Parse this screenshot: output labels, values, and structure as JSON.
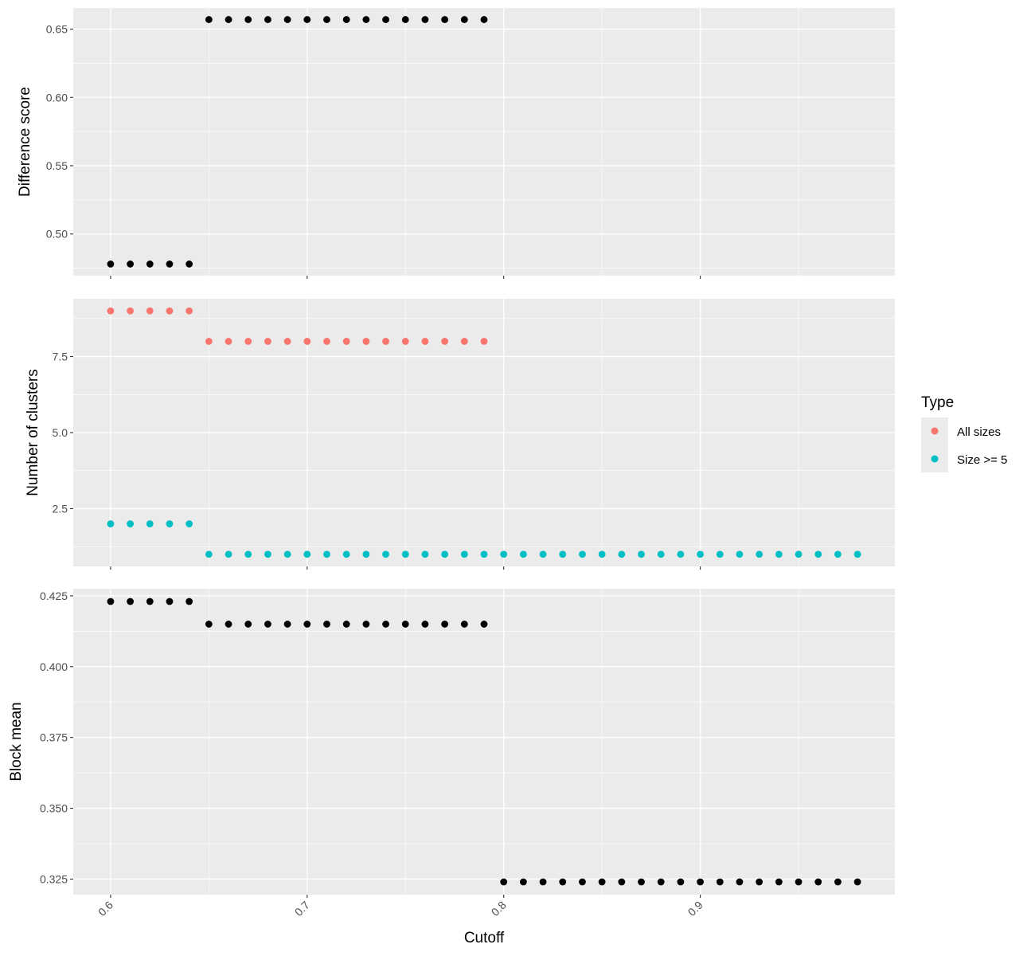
{
  "chart_data": {
    "type": "scatter",
    "x_label": "Cutoff",
    "x_ticks": [
      "0.6",
      "0.7",
      "0.8",
      "0.9"
    ],
    "x_range": [
      0.581,
      0.999
    ],
    "grid": true,
    "legend": {
      "title": "Type",
      "position": "right",
      "entries": [
        {
          "label": "All sizes",
          "color": "#F8766D"
        },
        {
          "label": "Size >= 5",
          "color": "#00BFC4"
        }
      ]
    },
    "panels": [
      {
        "y_label": "Difference score",
        "y_range": [
          0.4695,
          0.6655
        ],
        "y_ticks": [
          "0.50",
          "0.55",
          "0.60",
          "0.65"
        ],
        "series": [
          {
            "color": "#000000",
            "x": [
              0.6,
              0.61,
              0.62,
              0.63,
              0.64,
              0.65,
              0.66,
              0.67,
              0.68,
              0.69,
              0.7,
              0.71,
              0.72,
              0.73,
              0.74,
              0.75,
              0.76,
              0.77,
              0.78,
              0.79
            ],
            "y": [
              0.478,
              0.478,
              0.478,
              0.478,
              0.478,
              0.657,
              0.657,
              0.657,
              0.657,
              0.657,
              0.657,
              0.657,
              0.657,
              0.657,
              0.657,
              0.657,
              0.657,
              0.657,
              0.657,
              0.657
            ]
          }
        ]
      },
      {
        "y_label": "Number of clusters",
        "y_range": [
          0.6,
          9.4
        ],
        "y_ticks": [
          "2.5",
          "5.0",
          "7.5"
        ],
        "series": [
          {
            "name": "All sizes",
            "color": "#F8766D",
            "x": [
              0.6,
              0.61,
              0.62,
              0.63,
              0.64,
              0.65,
              0.66,
              0.67,
              0.68,
              0.69,
              0.7,
              0.71,
              0.72,
              0.73,
              0.74,
              0.75,
              0.76,
              0.77,
              0.78,
              0.79
            ],
            "y": [
              9,
              9,
              9,
              9,
              9,
              8,
              8,
              8,
              8,
              8,
              8,
              8,
              8,
              8,
              8,
              8,
              8,
              8,
              8,
              8
            ]
          },
          {
            "name": "Size >= 5",
            "color": "#00BFC4",
            "x": [
              0.6,
              0.61,
              0.62,
              0.63,
              0.64,
              0.65,
              0.66,
              0.67,
              0.68,
              0.69,
              0.7,
              0.71,
              0.72,
              0.73,
              0.74,
              0.75,
              0.76,
              0.77,
              0.78,
              0.79,
              0.8,
              0.81,
              0.82,
              0.83,
              0.84,
              0.85,
              0.86,
              0.87,
              0.88,
              0.89,
              0.9,
              0.91,
              0.92,
              0.93,
              0.94,
              0.95,
              0.96,
              0.97,
              0.98
            ],
            "y": [
              2,
              2,
              2,
              2,
              2,
              1,
              1,
              1,
              1,
              1,
              1,
              1,
              1,
              1,
              1,
              1,
              1,
              1,
              1,
              1,
              1,
              1,
              1,
              1,
              1,
              1,
              1,
              1,
              1,
              1,
              1,
              1,
              1,
              1,
              1,
              1,
              1,
              1,
              1
            ]
          }
        ]
      },
      {
        "y_label": "Block mean",
        "y_range": [
          0.3195,
          0.4275
        ],
        "y_ticks": [
          "0.325",
          "0.350",
          "0.375",
          "0.400",
          "0.425"
        ],
        "series": [
          {
            "color": "#000000",
            "x": [
              0.6,
              0.61,
              0.62,
              0.63,
              0.64,
              0.65,
              0.66,
              0.67,
              0.68,
              0.69,
              0.7,
              0.71,
              0.72,
              0.73,
              0.74,
              0.75,
              0.76,
              0.77,
              0.78,
              0.79,
              0.8,
              0.81,
              0.82,
              0.83,
              0.84,
              0.85,
              0.86,
              0.87,
              0.88,
              0.89,
              0.9,
              0.91,
              0.92,
              0.93,
              0.94,
              0.95,
              0.96,
              0.97,
              0.98
            ],
            "y": [
              0.423,
              0.423,
              0.423,
              0.423,
              0.423,
              0.415,
              0.415,
              0.415,
              0.415,
              0.415,
              0.415,
              0.415,
              0.415,
              0.415,
              0.415,
              0.415,
              0.415,
              0.415,
              0.415,
              0.415,
              0.324,
              0.324,
              0.324,
              0.324,
              0.324,
              0.324,
              0.324,
              0.324,
              0.324,
              0.324,
              0.324,
              0.324,
              0.324,
              0.324,
              0.324,
              0.324,
              0.324,
              0.324,
              0.324
            ]
          }
        ]
      }
    ]
  }
}
